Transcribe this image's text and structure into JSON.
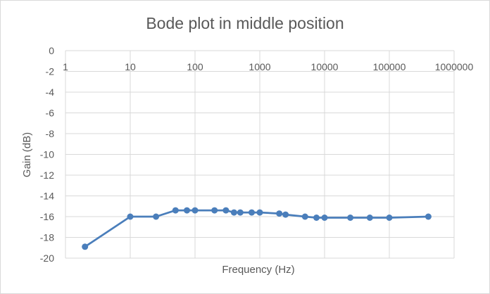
{
  "chart_data": {
    "type": "line",
    "title": "Bode plot in middle position",
    "xlabel": "Frequency (Hz)",
    "ylabel": "Gain (dB)",
    "x_scale": "log",
    "xlim": [
      1,
      1000000
    ],
    "ylim": [
      -20,
      0
    ],
    "x_ticks": [
      "1",
      "10",
      "100",
      "1000",
      "10000",
      "100000",
      "1000000"
    ],
    "y_ticks": [
      "0",
      "-2",
      "-4",
      "-6",
      "-8",
      "-10",
      "-12",
      "-14",
      "-16",
      "-18",
      "-20"
    ],
    "x_tick_values": [
      1,
      10,
      100,
      1000,
      10000,
      100000,
      1000000
    ],
    "y_tick_values": [
      0,
      -2,
      -4,
      -6,
      -8,
      -10,
      -12,
      -14,
      -16,
      -18,
      -20
    ],
    "grid": true,
    "legend": "none",
    "colors": {
      "series": "#4a7ebb",
      "grid": "#d9d9d9",
      "text": "#595959"
    },
    "series": [
      {
        "x": [
          2,
          10,
          25,
          50,
          75,
          100,
          200,
          300,
          400,
          500,
          750,
          1000,
          2000,
          2500,
          5000,
          7500,
          10000,
          25000,
          50000,
          100000,
          400000
        ],
        "y": [
          -18.9,
          -16.0,
          -16.0,
          -15.4,
          -15.4,
          -15.4,
          -15.4,
          -15.4,
          -15.6,
          -15.6,
          -15.6,
          -15.6,
          -15.7,
          -15.8,
          -16.0,
          -16.1,
          -16.1,
          -16.1,
          -16.1,
          -16.1,
          -16.0
        ]
      }
    ]
  }
}
